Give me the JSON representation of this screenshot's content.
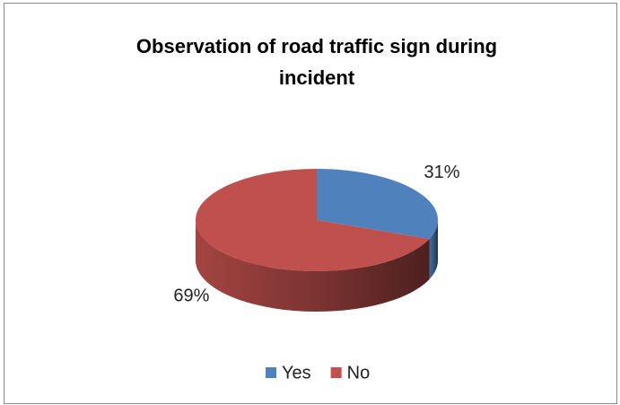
{
  "chart_data": {
    "type": "pie",
    "title": "Observation of road traffic sign during incident",
    "categories": [
      "Yes",
      "No"
    ],
    "values": [
      31,
      69
    ],
    "value_labels": [
      "31%",
      "69%"
    ],
    "colors": [
      "#4f81bd",
      "#c0504d"
    ],
    "legend": "bottom"
  }
}
